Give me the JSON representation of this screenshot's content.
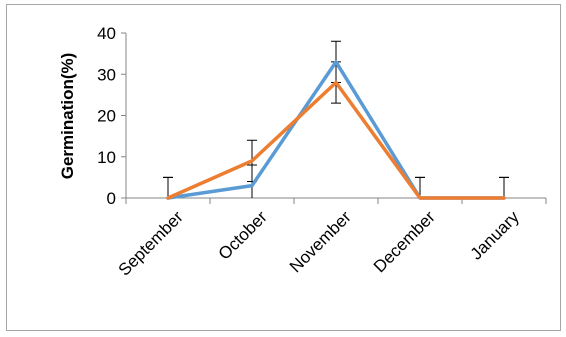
{
  "chart_data": {
    "type": "line",
    "title": "",
    "xlabel": "",
    "ylabel": "Germination(%)",
    "categories": [
      "September",
      "October",
      "November",
      "December",
      "January"
    ],
    "ylim": [
      0,
      40
    ],
    "yticks": [
      0,
      10,
      20,
      30,
      40
    ],
    "grid": false,
    "legend": "none",
    "series": [
      {
        "color": "#5b9bd5",
        "values": [
          0,
          3,
          33,
          0,
          0
        ],
        "error": [
          5,
          5,
          5,
          5,
          5
        ]
      },
      {
        "color": "#ed7d31",
        "values": [
          0,
          9,
          28,
          0,
          0
        ],
        "error": [
          5,
          5,
          5,
          5,
          5
        ]
      }
    ]
  }
}
